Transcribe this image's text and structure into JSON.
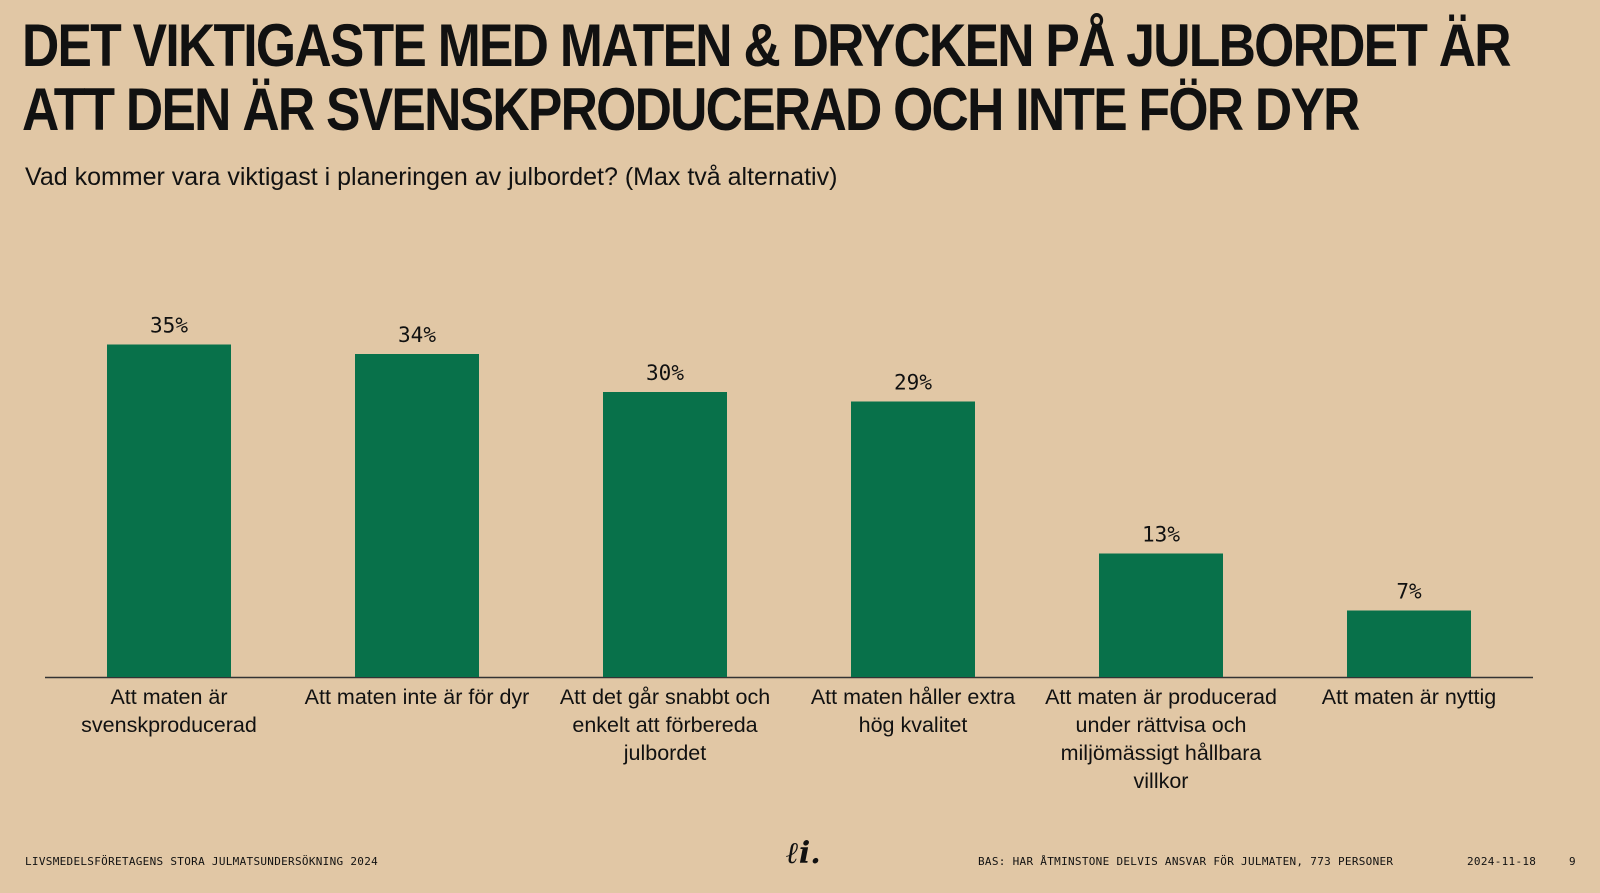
{
  "title_lines": [
    "DET VIKTIGASTE MED MATEN & DRYCKEN PÅ JULBORDET ÄR",
    "ATT DEN ÄR SVENSKPRODUCERAD OCH INTE FÖR DYR"
  ],
  "subtitle": "Vad kommer vara viktigast i planeringen av julbordet? (Max två alternativ)",
  "chart_data": {
    "type": "bar",
    "categories": [
      "Att maten är svenskproducerad",
      "Att maten inte är för dyr",
      "Att det går snabbt och enkelt att förbereda julbordet",
      "Att maten håller extra hög kvalitet",
      "Att maten är producerad under rättvisa och miljömässigt hållbara villkor",
      "Att maten är nyttig"
    ],
    "values": [
      35,
      34,
      30,
      29,
      13,
      7
    ],
    "value_labels": [
      "35%",
      "34%",
      "30%",
      "29%",
      "13%",
      "7%"
    ],
    "unit": "%",
    "ylim": [
      0,
      35
    ],
    "grid": false,
    "legend": "none",
    "bar_color": "#08714a",
    "axis_color": "#333333"
  },
  "footer": {
    "left": "LIVSMEDELSFÖRETAGENS STORA JULMATSUNDERSÖKNING 2024",
    "base": "BAS: HAR ÅTMINSTONE DELVIS ANSVAR FÖR JULMATEN, 773 PERSONER",
    "date": "2024-11-18",
    "page": "9",
    "logo_glyph": "ℓi."
  },
  "colors": {
    "background": "#e1c7a5",
    "bar": "#08714a",
    "text": "#111111"
  }
}
